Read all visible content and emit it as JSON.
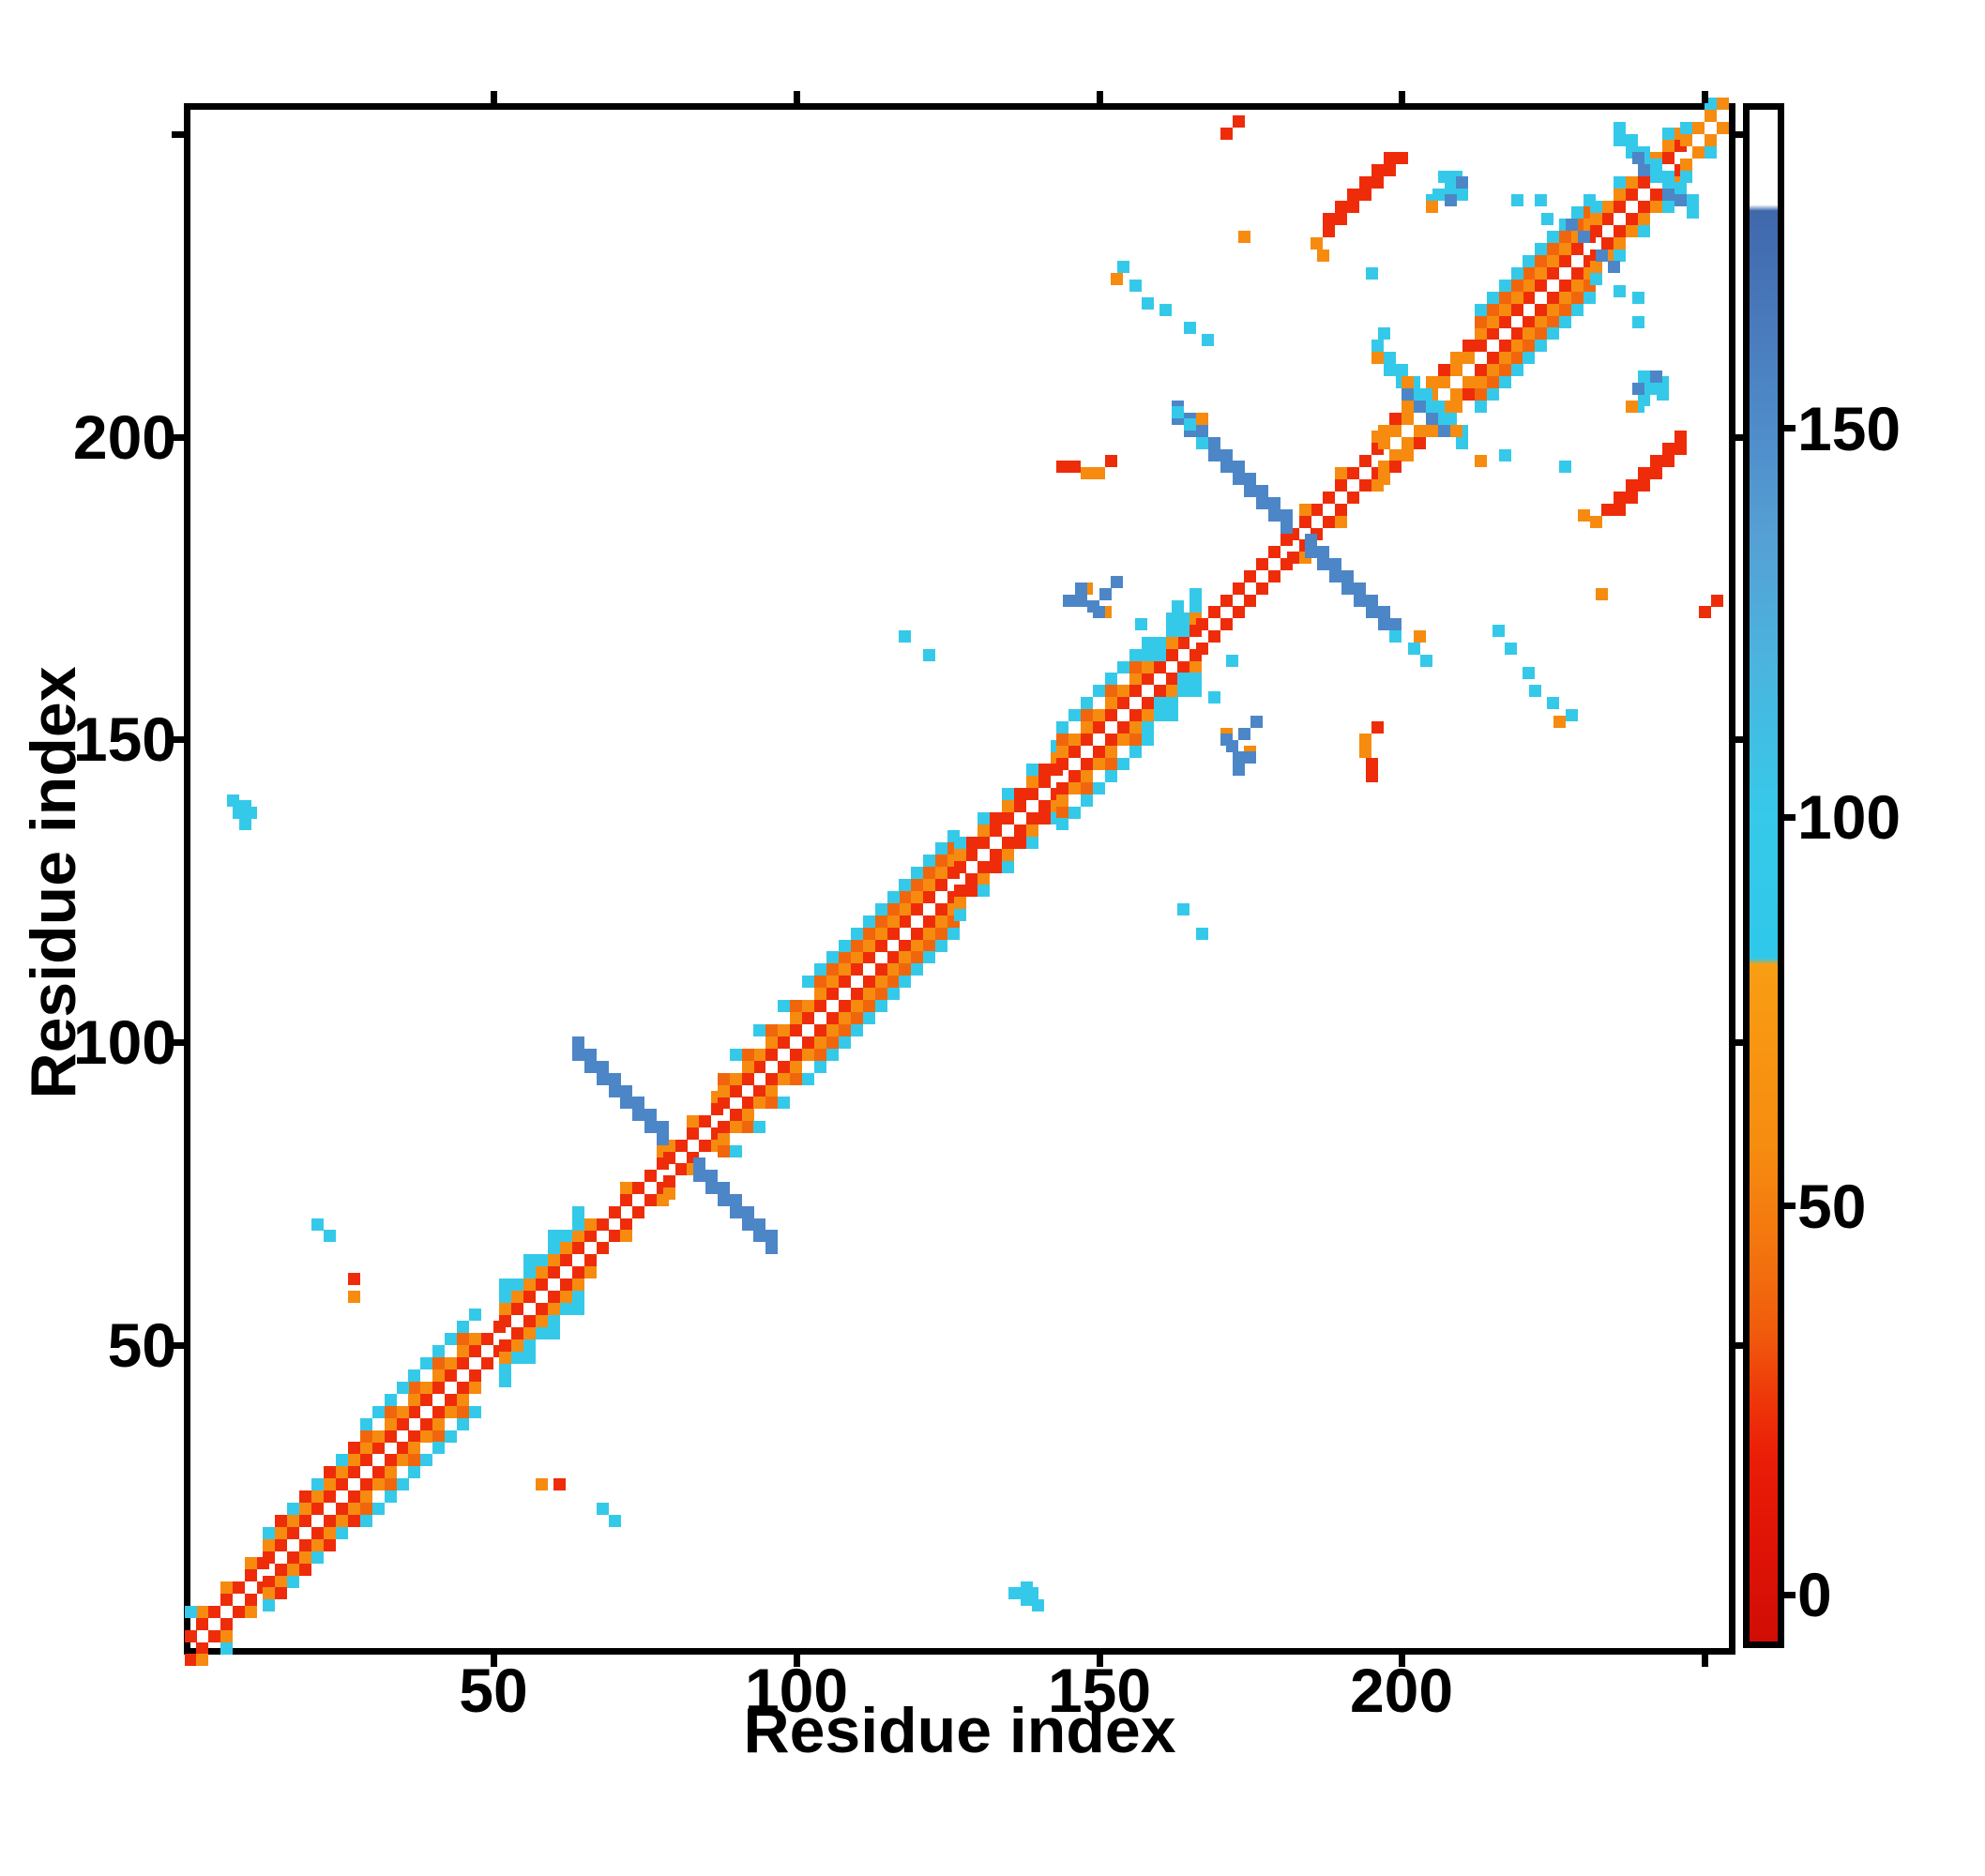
{
  "figure": {
    "kind": "protein residue contact map",
    "background": "#ffffff",
    "frame_color": "#000000"
  },
  "chart_data": {
    "type": "heatmap",
    "title": "",
    "xlabel": "Residue index",
    "ylabel": "Residue index",
    "xlim": [
      0,
      254
    ],
    "ylim": [
      0,
      254
    ],
    "x_tick_labels": [
      50,
      100,
      150,
      200
    ],
    "y_tick_labels": [
      50,
      100,
      150,
      200
    ],
    "tick_marks": [
      50,
      100,
      150,
      200,
      250
    ],
    "grid": false,
    "symmetric": true,
    "cell_units": 2,
    "palette": {
      "red": "#ee2c09",
      "or": "#f68b10",
      "or2": "#f1660d",
      "cy": "#35c9e9",
      "st": "#4d86c6"
    },
    "colorbar": {
      "tick_labels": [
        0,
        50,
        100,
        150
      ],
      "value_range": [
        -6,
        191
      ],
      "position": "right",
      "gradient_stops_pct_bottom_up": [
        [
          0,
          "#d00d05"
        ],
        [
          6,
          "#df1306"
        ],
        [
          12,
          "#ea1d07"
        ],
        [
          16,
          "#ee3809"
        ],
        [
          20,
          "#f05a0c"
        ],
        [
          26,
          "#f3760e"
        ],
        [
          32,
          "#f68b10"
        ],
        [
          40,
          "#f89712"
        ],
        [
          44.2,
          "#f99e13"
        ],
        [
          44.6,
          "#2fc8ea"
        ],
        [
          54,
          "#36c9e9"
        ],
        [
          64,
          "#4bb4de"
        ],
        [
          72,
          "#55a0d4"
        ],
        [
          79,
          "#4f8cca"
        ],
        [
          86,
          "#497abc"
        ],
        [
          93.4,
          "#3f68ab"
        ],
        [
          93.8,
          "#ffffff"
        ],
        [
          100,
          "#ffffff"
        ]
      ]
    },
    "features": {
      "diag_bands": [
        [
          0,
          13,
          [
            [
              2,
              "red",
              2,
              0
            ],
            [
              4,
              "or",
              4,
              2
            ]
          ]
        ],
        [
          13,
          29,
          [
            [
              2,
              "red",
              2,
              0
            ],
            [
              4,
              "or",
              2,
              0
            ],
            [
              6,
              "cy",
              4,
              0
            ],
            [
              6,
              "red",
              4,
              2
            ]
          ]
        ],
        [
          29,
          47,
          [
            [
              2,
              "red",
              2,
              0
            ],
            [
              4,
              "or",
              2,
              0
            ],
            [
              6,
              "or2",
              4,
              0
            ],
            [
              8,
              "cy",
              2,
              0
            ]
          ]
        ],
        [
          47,
          52,
          [
            [
              2,
              "red",
              2,
              0
            ]
          ]
        ],
        [
          52,
          64,
          [
            [
              2,
              "red",
              2,
              0
            ],
            [
              4,
              "or",
              2,
              0
            ],
            [
              6,
              "cy",
              2,
              0
            ],
            [
              8,
              "cy",
              4,
              0
            ]
          ]
        ],
        [
          64,
          79,
          [
            [
              2,
              "red",
              2,
              0
            ],
            [
              4,
              "or",
              6,
              2
            ]
          ]
        ],
        [
          79,
          88,
          [
            [
              2,
              "red",
              2,
              0
            ],
            [
              4,
              "or",
              4,
              0
            ]
          ]
        ],
        [
          88,
          104,
          [
            [
              2,
              "red",
              2,
              0
            ],
            [
              4,
              "or",
              2,
              0
            ],
            [
              6,
              "or2",
              4,
              0
            ],
            [
              8,
              "cy",
              4,
              2
            ]
          ]
        ],
        [
          104,
          127,
          [
            [
              2,
              "red",
              2,
              0
            ],
            [
              4,
              "or",
              2,
              0
            ],
            [
              6,
              "or2",
              2,
              0
            ],
            [
              8,
              "cy",
              2,
              0
            ]
          ]
        ],
        [
          127,
          144,
          [
            [
              2,
              "red",
              2,
              0
            ],
            [
              4,
              "or",
              4,
              0
            ],
            [
              4,
              "red",
              4,
              2
            ],
            [
              6,
              "cy",
              4,
              0
            ]
          ]
        ],
        [
          144,
          158,
          [
            [
              2,
              "red",
              2,
              0
            ],
            [
              4,
              "or",
              2,
              0
            ],
            [
              6,
              "or2",
              4,
              0
            ],
            [
              8,
              "cy",
              2,
              0
            ]
          ]
        ],
        [
          158,
          167,
          [
            [
              2,
              "red",
              2,
              0
            ],
            [
              4,
              "or",
              4,
              0
            ],
            [
              4,
              "cy",
              4,
              2
            ],
            [
              6,
              "cy",
              2,
              0
            ],
            [
              8,
              "cy",
              4,
              0
            ]
          ]
        ],
        [
          167,
          182,
          [
            [
              2,
              "red",
              2,
              0
            ]
          ]
        ],
        [
          182,
          197,
          [
            [
              2,
              "red",
              2,
              0
            ],
            [
              4,
              "or",
              6,
              2
            ]
          ]
        ],
        [
          197,
          213,
          [
            [
              2,
              "or",
              2,
              0
            ],
            [
              4,
              "or",
              4,
              0
            ],
            [
              4,
              "red",
              4,
              2
            ]
          ]
        ],
        [
          213,
          232,
          [
            [
              2,
              "red",
              2,
              0
            ],
            [
              4,
              "or",
              2,
              0
            ],
            [
              6,
              "or2",
              2,
              0
            ],
            [
              8,
              "cy",
              2,
              0
            ]
          ]
        ],
        [
          232,
          247,
          [
            [
              2,
              "red",
              2,
              0
            ],
            [
              4,
              "or",
              2,
              0
            ],
            [
              6,
              "cy",
              4,
              0
            ]
          ]
        ],
        [
          247,
          253,
          [
            [
              2,
              "or",
              2,
              0
            ],
            [
              4,
              "cy",
              4,
              0
            ]
          ]
        ]
      ],
      "anti_diagonal_lines": [
        [
          162,
          64,
          78,
          "st",
          2
        ],
        [
          162,
          84,
          97,
          "st",
          2
        ],
        [
          366,
          163,
          181,
          "st",
          2
        ],
        [
          366,
          185,
          200,
          "st",
          2
        ],
        [
          409,
          196,
          210,
          "cy",
          2
        ],
        [
          485,
          236,
          249,
          "cy",
          2
        ]
      ],
      "parallel_stripes": [
        [
          46,
          188,
          200,
          "red"
        ],
        [
          48,
          188,
          198,
          "red"
        ]
      ],
      "cell_groups": [
        {
          "color": "cy",
          "mirror": true,
          "pts": [
            [
              7,
              140
            ],
            [
              9,
              139
            ],
            [
              8,
              138
            ],
            [
              10,
              138
            ],
            [
              9,
              136
            ],
            [
              21,
              70
            ],
            [
              23,
              68
            ],
            [
              0,
              6
            ],
            [
              197,
              217
            ],
            [
              195,
              227
            ],
            [
              219,
              239
            ],
            [
              223,
              239
            ],
            [
              224,
              236
            ],
            [
              118,
              167
            ],
            [
              122,
              164
            ],
            [
              157,
              169
            ],
            [
              163,
              172
            ],
            [
              154,
              228
            ],
            [
              156,
              225
            ],
            [
              158,
              222
            ],
            [
              161,
              221
            ],
            [
              165,
              218
            ],
            [
              168,
              216
            ],
            [
              163,
              204
            ],
            [
              165,
              202
            ],
            [
              199,
              167
            ],
            [
              206,
              240
            ],
            [
              208,
              241
            ],
            [
              207,
              243
            ],
            [
              209,
              243
            ],
            [
              210,
              240
            ],
            [
              205,
              239
            ]
          ]
        },
        {
          "color": "red",
          "mirror": true,
          "pts": [
            [
              27,
              61
            ],
            [
              144,
              195
            ],
            [
              146,
              195
            ],
            [
              152,
              196
            ],
            [
              171,
              250
            ],
            [
              173,
              252
            ]
          ]
        },
        {
          "color": "or",
          "mirror": true,
          "pts": [
            [
              27,
              58
            ],
            [
              148,
              194
            ],
            [
              150,
              194
            ],
            [
              153,
              226
            ],
            [
              167,
              203
            ],
            [
              174,
              233
            ],
            [
              196,
              213
            ],
            [
              209,
              201
            ],
            [
              148,
              175
            ],
            [
              171,
              151
            ],
            [
              205,
              238
            ],
            [
              186,
              232
            ],
            [
              187,
              230
            ]
          ]
        },
        {
          "color": "st",
          "mirror": true,
          "pts": [
            [
              145,
              173
            ],
            [
              147,
              173
            ],
            [
              149,
              172
            ],
            [
              147,
              175
            ],
            [
              151,
              174
            ],
            [
              150,
              171
            ],
            [
              153,
              176
            ],
            [
              201,
              207
            ],
            [
              203,
              205
            ],
            [
              205,
              203
            ],
            [
              244,
              240
            ],
            [
              246,
              239
            ],
            [
              228,
              235
            ],
            [
              230,
              233
            ],
            [
              208,
              239
            ],
            [
              210,
              242
            ]
          ]
        }
      ]
    }
  }
}
